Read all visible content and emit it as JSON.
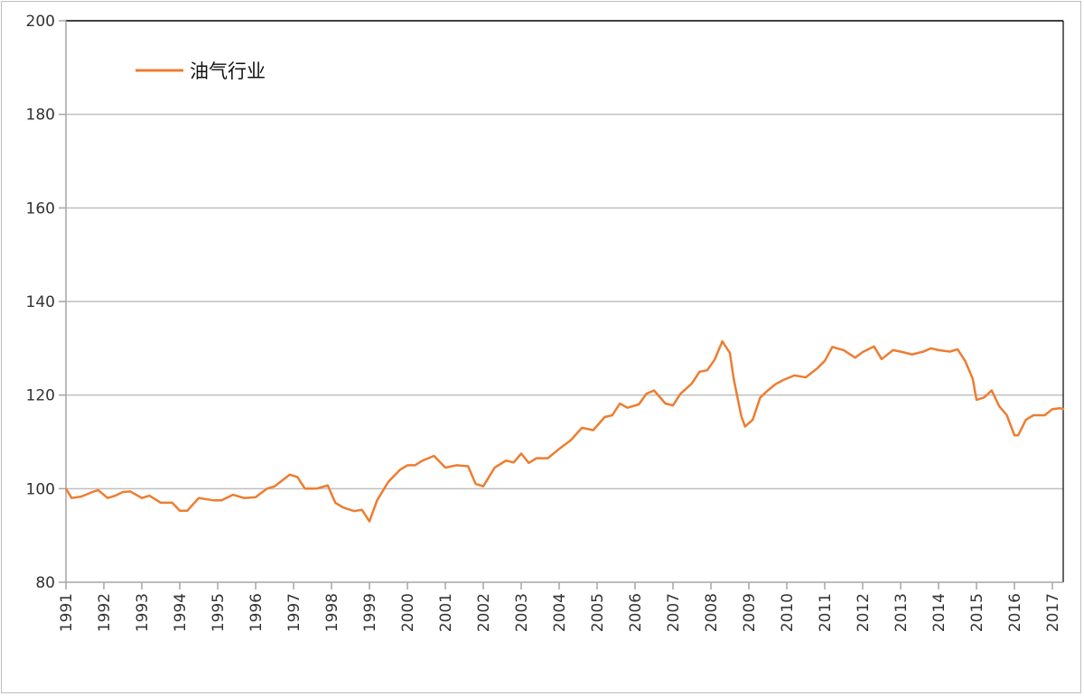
{
  "chart_data": {
    "type": "line",
    "title": "",
    "xlabel": "",
    "ylabel": "",
    "ylim": [
      80,
      200
    ],
    "yticks": [
      "80",
      "100",
      "120",
      "140",
      "160",
      "180",
      "200"
    ],
    "xlim": [
      1991,
      2017.3
    ],
    "xticks": [
      "1991",
      "1992",
      "1993",
      "1994",
      "1995",
      "1996",
      "1997",
      "1998",
      "1999",
      "2000",
      "2001",
      "2002",
      "2003",
      "2004",
      "2005",
      "2006",
      "2007",
      "2008",
      "2009",
      "2010",
      "2011",
      "2012",
      "2013",
      "2014",
      "2015",
      "2016",
      "2017"
    ],
    "grid": "horizontal",
    "legend_position": "top-left",
    "series": [
      {
        "name": "油气行业",
        "color": "#ED7D31",
        "x": [
          1991.0,
          1991.15,
          1991.4,
          1991.7,
          1991.85,
          1992.1,
          1992.3,
          1992.5,
          1992.7,
          1993.0,
          1993.2,
          1993.5,
          1993.8,
          1994.0,
          1994.2,
          1994.5,
          1994.9,
          1995.1,
          1995.4,
          1995.7,
          1996.0,
          1996.3,
          1996.5,
          1996.9,
          1997.1,
          1997.3,
          1997.6,
          1997.9,
          1998.1,
          1998.3,
          1998.6,
          1998.8,
          1999.0,
          1999.2,
          1999.5,
          1999.8,
          2000.0,
          2000.2,
          2000.4,
          2000.7,
          2001.0,
          2001.3,
          2001.6,
          2001.8,
          2002.0,
          2002.3,
          2002.6,
          2002.8,
          2003.0,
          2003.2,
          2003.4,
          2003.7,
          2004.0,
          2004.3,
          2004.6,
          2004.9,
          2005.2,
          2005.4,
          2005.6,
          2005.8,
          2006.1,
          2006.3,
          2006.5,
          2006.8,
          2007.0,
          2007.2,
          2007.5,
          2007.7,
          2007.9,
          2008.1,
          2008.3,
          2008.5,
          2008.6,
          2008.8,
          2008.9,
          2009.1,
          2009.3,
          2009.5,
          2009.7,
          2009.9,
          2010.2,
          2010.5,
          2010.8,
          2011.0,
          2011.2,
          2011.5,
          2011.8,
          2012.0,
          2012.3,
          2012.5,
          2012.8,
          2013.0,
          2013.3,
          2013.6,
          2013.8,
          2014.0,
          2014.3,
          2014.5,
          2014.7,
          2014.9,
          2015.0,
          2015.2,
          2015.4,
          2015.6,
          2015.8,
          2016.0,
          2016.1,
          2016.3,
          2016.5,
          2016.8,
          2017.0,
          2017.2,
          2017.3
        ],
        "values": [
          100,
          98,
          98.3,
          99.3,
          99.7,
          98,
          98.5,
          99.3,
          99.4,
          98,
          98.5,
          97,
          97,
          95.3,
          95.3,
          98,
          97.5,
          97.5,
          98.7,
          98,
          98.2,
          100,
          100.5,
          103,
          102.5,
          100,
          100,
          100.7,
          97,
          96,
          95.2,
          95.5,
          93,
          97.5,
          101.5,
          104,
          105,
          105,
          106,
          107,
          104.5,
          105,
          104.8,
          101,
          100.5,
          104.5,
          106,
          105.6,
          107.5,
          105.5,
          106.5,
          106.5,
          108.5,
          110.3,
          113,
          112.5,
          115.3,
          115.7,
          118.2,
          117.3,
          118,
          120.3,
          121,
          118.2,
          117.8,
          120.3,
          122.5,
          125,
          125.3,
          127.6,
          131.5,
          129,
          123.5,
          115.5,
          113.3,
          114.7,
          119.5,
          121,
          122.3,
          123.2,
          124.2,
          123.8,
          125.7,
          127.3,
          130.3,
          129.6,
          128,
          129.2,
          130.4,
          127.7,
          129.6,
          129.3,
          128.7,
          129.3,
          130,
          129.6,
          129.3,
          129.8,
          127.3,
          123.5,
          119,
          119.5,
          121,
          117.6,
          115.7,
          111.4,
          111.4,
          114.7,
          115.7,
          115.7,
          117,
          117.2,
          117
        ]
      }
    ]
  }
}
